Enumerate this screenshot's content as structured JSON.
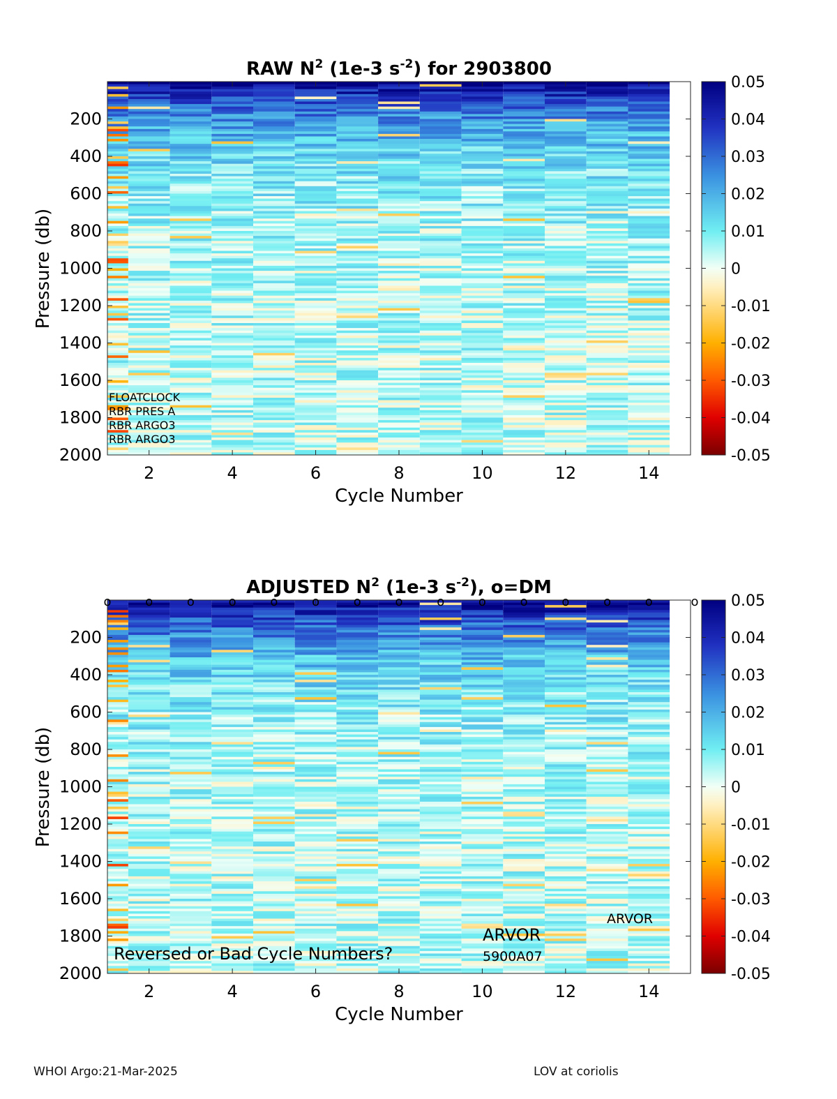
{
  "chart_data": [
    {
      "type": "heatmap",
      "title_parts": {
        "pre": "RAW N",
        "sup1": "2",
        "mid": " (1e-3 s",
        "sup2": "-2",
        "post": ") for 2903800"
      },
      "xlabel": "Cycle Number",
      "ylabel": "Pressure (db)",
      "xlim": [
        1,
        15
      ],
      "ylim": [
        0,
        2000
      ],
      "y_reversed": true,
      "xticks": [
        2,
        4,
        6,
        8,
        10,
        12,
        14
      ],
      "yticks": [
        200,
        400,
        600,
        800,
        1000,
        1200,
        1400,
        1600,
        1800,
        2000
      ],
      "cycles": [
        1,
        2,
        3,
        4,
        5,
        6,
        7,
        8,
        9,
        10,
        11,
        12,
        13,
        14
      ],
      "colorbar": {
        "min": -0.05,
        "max": 0.05,
        "ticks": [
          "0.05",
          "0.04",
          "0.03",
          "0.02",
          "0.01",
          "0",
          "-0.01",
          "-0.02",
          "-0.03",
          "-0.04",
          "-0.05"
        ]
      },
      "annotations": [
        "FLOATCLOCK",
        "RBR PRES A",
        "RBR ARGO3",
        "RBR ARGO3"
      ],
      "dm_markers": []
    },
    {
      "type": "heatmap",
      "title_parts": {
        "pre": "ADJUSTED N",
        "sup1": "2",
        "mid": " (1e-3 s",
        "sup2": "-2",
        "post": "), o=DM"
      },
      "xlabel": "Cycle Number",
      "ylabel": "Pressure (db)",
      "xlim": [
        1,
        15
      ],
      "ylim": [
        0,
        2000
      ],
      "y_reversed": true,
      "xticks": [
        2,
        4,
        6,
        8,
        10,
        12,
        14
      ],
      "yticks": [
        200,
        400,
        600,
        800,
        1000,
        1200,
        1400,
        1600,
        1800,
        2000
      ],
      "cycles": [
        1,
        2,
        3,
        4,
        5,
        6,
        7,
        8,
        9,
        10,
        11,
        12,
        13,
        14
      ],
      "colorbar": {
        "min": -0.05,
        "max": 0.05,
        "ticks": [
          "0.05",
          "0.04",
          "0.03",
          "0.02",
          "0.01",
          "0",
          "-0.01",
          "-0.02",
          "-0.03",
          "-0.04",
          "-0.05"
        ]
      },
      "annotations": [
        "Reversed or Bad Cycle Numbers?",
        "ARVOR",
        "5900A07",
        "ARVOR"
      ],
      "dm_markers": [
        1,
        2,
        3,
        4,
        5,
        6,
        7,
        8,
        9,
        10,
        11,
        12,
        13,
        14,
        15
      ],
      "dm_marker_symbol": "o"
    }
  ],
  "footer": {
    "left": "WHOI Argo:21-Mar-2025",
    "right": "LOV at coriolis"
  }
}
